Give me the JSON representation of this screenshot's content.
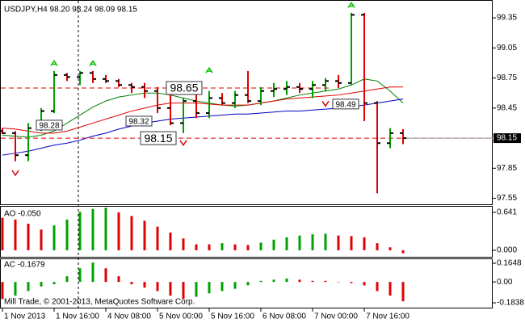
{
  "chart_data": [
    {
      "type": "ohlc",
      "title": "USDJPY,H4  98.20 98.24 98.09 98.15",
      "categories": [
        "1 Nov 2013",
        null,
        null,
        null,
        "1 Nov 16:00",
        null,
        null,
        null,
        "4 Nov 08:00",
        null,
        null,
        null,
        "5 Nov 00:00",
        null,
        null,
        null,
        "5 Nov 16:00",
        null,
        null,
        null,
        "6 Nov 08:00",
        null,
        null,
        null,
        "7 Nov 00:00",
        null,
        null,
        null,
        "7 Nov 16:00",
        null,
        null,
        null
      ],
      "open": [
        98.22,
        98.2,
        97.98,
        98.25,
        98.42,
        98.78,
        98.76,
        98.8,
        98.74,
        98.72,
        98.68,
        98.66,
        98.62,
        98.45,
        98.3,
        98.52,
        98.4,
        98.55,
        98.5,
        98.58,
        98.52,
        98.62,
        98.64,
        98.66,
        98.64,
        98.68,
        98.72,
        98.7,
        99.38,
        98.5,
        98.1,
        98.2
      ],
      "high": [
        98.25,
        98.22,
        98.3,
        98.45,
        98.82,
        98.8,
        98.82,
        98.82,
        98.78,
        98.74,
        98.7,
        98.7,
        98.66,
        98.6,
        98.55,
        98.6,
        98.62,
        98.6,
        98.62,
        98.82,
        98.66,
        98.7,
        98.72,
        98.7,
        98.72,
        98.75,
        98.78,
        99.4,
        99.4,
        98.52,
        98.25,
        98.24
      ],
      "low": [
        98.19,
        97.92,
        97.92,
        98.22,
        98.4,
        98.72,
        98.68,
        98.7,
        98.7,
        98.66,
        98.6,
        98.55,
        98.4,
        98.28,
        98.2,
        98.35,
        98.35,
        98.48,
        98.45,
        98.5,
        98.48,
        98.56,
        98.58,
        98.6,
        98.55,
        98.62,
        98.65,
        98.68,
        98.32,
        97.6,
        98.05,
        98.09
      ],
      "close": [
        98.2,
        97.98,
        98.25,
        98.42,
        98.78,
        98.76,
        98.8,
        98.74,
        98.72,
        98.68,
        98.66,
        98.62,
        98.45,
        98.3,
        98.52,
        98.4,
        98.55,
        98.5,
        98.58,
        98.52,
        98.62,
        98.64,
        98.66,
        98.64,
        98.68,
        98.72,
        98.7,
        99.38,
        98.5,
        98.1,
        98.2,
        98.15
      ],
      "up_color": "#00a000",
      "down_color": "#e00000",
      "series": [
        {
          "color": "#008000",
          "values": [
            98.18,
            98.17,
            98.16,
            98.18,
            98.22,
            98.3,
            98.38,
            98.46,
            98.52,
            98.56,
            98.58,
            98.6,
            98.6,
            98.58,
            98.55,
            98.52,
            98.5,
            98.48,
            98.47,
            98.48,
            98.5,
            98.52,
            98.55,
            98.58,
            98.6,
            98.62,
            98.64,
            98.68,
            98.74,
            98.72,
            98.62,
            98.5
          ]
        },
        {
          "color": "#e00000",
          "values": [
            98.25,
            98.24,
            98.22,
            98.2,
            98.2,
            98.22,
            98.26,
            98.3,
            98.34,
            98.38,
            98.42,
            98.45,
            98.48,
            98.5,
            98.5,
            98.5,
            98.49,
            98.48,
            98.48,
            98.48,
            98.5,
            98.52,
            98.54,
            98.55,
            98.56,
            98.57,
            98.58,
            98.6,
            98.62,
            98.64,
            98.66,
            98.66
          ]
        },
        {
          "color": "#0000c0",
          "values": [
            97.98,
            98.0,
            98.02,
            98.05,
            98.08,
            98.1,
            98.13,
            98.17,
            98.2,
            98.24,
            98.27,
            98.3,
            98.32,
            98.34,
            98.35,
            98.36,
            98.37,
            98.38,
            98.39,
            98.39,
            98.4,
            98.41,
            98.42,
            98.42,
            98.43,
            98.44,
            98.45,
            98.46,
            98.48,
            98.5,
            98.52,
            98.54
          ]
        }
      ],
      "fractals_up": [
        null,
        null,
        null,
        null,
        98.92,
        null,
        null,
        98.92,
        null,
        null,
        null,
        null,
        null,
        null,
        null,
        null,
        98.85,
        null,
        null,
        null,
        null,
        null,
        null,
        null,
        null,
        null,
        null,
        99.5,
        null,
        null,
        null,
        null
      ],
      "fractals_down": [
        null,
        97.78,
        null,
        null,
        null,
        null,
        null,
        null,
        null,
        null,
        null,
        null,
        null,
        null,
        98.08,
        null,
        null,
        null,
        null,
        null,
        null,
        null,
        null,
        null,
        null,
        98.47,
        null,
        null,
        null,
        null,
        null,
        null
      ],
      "annotations": [
        {
          "value": 98.28,
          "label": "98.28"
        },
        {
          "value": 98.32,
          "label": "98.32"
        },
        {
          "value": 98.65,
          "label": "98.65"
        },
        {
          "value": 98.15,
          "label": "98.15"
        },
        {
          "value": 98.49,
          "label": "98.49"
        }
      ],
      "current_price": {
        "value": 98.15,
        "label": "98.15"
      },
      "ylim": [
        97.49,
        99.52
      ],
      "yticks": [
        99.35,
        99.05,
        98.75,
        98.45,
        97.85,
        97.55
      ]
    },
    {
      "type": "histogram",
      "title": "AO -0.050",
      "values": [
        0.55,
        0.52,
        0.45,
        0.35,
        0.42,
        0.52,
        0.65,
        0.7,
        0.72,
        0.64,
        0.58,
        0.5,
        0.4,
        0.3,
        0.2,
        0.1,
        0.1,
        0.12,
        0.1,
        0.09,
        0.13,
        0.18,
        0.22,
        0.25,
        0.27,
        0.28,
        0.25,
        0.24,
        0.22,
        0.12,
        0.05,
        -0.05
      ],
      "up_color": "#00a000",
      "down_color": "#e00000",
      "ylim": [
        -0.11,
        0.737
      ],
      "yticks": [
        0.641,
        {
          "value": 0,
          "label": "0.000"
        }
      ]
    },
    {
      "type": "histogram",
      "title": "AC -0.1679",
      "values": [
        -0.15,
        -0.12,
        -0.08,
        -0.04,
        -0.02,
        0.05,
        0.12,
        0.17,
        0.12,
        0.05,
        -0.02,
        -0.05,
        -0.08,
        -0.12,
        -0.15,
        -0.13,
        -0.1,
        -0.08,
        -0.06,
        -0.03,
        0.01,
        0.02,
        0.03,
        0.02,
        0.01,
        0.01,
        0.0,
        -0.01,
        -0.03,
        -0.08,
        -0.12,
        -0.17
      ],
      "up_color": "#00a000",
      "down_color": "#e00000",
      "ylim": [
        -0.226,
        0.2
      ],
      "yticks": [
        0.1648,
        {
          "value": 0,
          "label": "0.00"
        },
        -0.1838
      ],
      "note": "Mill Trade, © 2001-2013, MetaQuotes Software Corp."
    }
  ]
}
